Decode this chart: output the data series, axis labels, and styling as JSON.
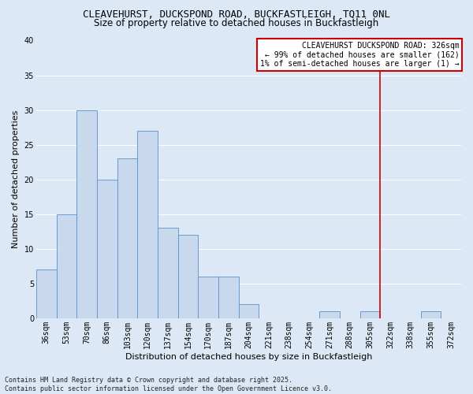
{
  "title": "CLEAVEHURST, DUCKSPOND ROAD, BUCKFASTLEIGH, TQ11 0NL",
  "subtitle": "Size of property relative to detached houses in Buckfastleigh",
  "xlabel": "Distribution of detached houses by size in Buckfastleigh",
  "ylabel": "Number of detached properties",
  "categories": [
    "36sqm",
    "53sqm",
    "70sqm",
    "86sqm",
    "103sqm",
    "120sqm",
    "137sqm",
    "154sqm",
    "170sqm",
    "187sqm",
    "204sqm",
    "221sqm",
    "238sqm",
    "254sqm",
    "271sqm",
    "288sqm",
    "305sqm",
    "322sqm",
    "338sqm",
    "355sqm",
    "372sqm"
  ],
  "values": [
    7,
    15,
    30,
    20,
    23,
    27,
    13,
    12,
    6,
    6,
    2,
    0,
    0,
    0,
    1,
    0,
    1,
    0,
    0,
    1,
    0
  ],
  "bar_color": "#c8d9ee",
  "bar_edge_color": "#5b8fc9",
  "bg_color": "#dce8f5",
  "grid_color": "#ffffff",
  "vline_color": "#cc0000",
  "vline_index": 16.5,
  "annotation_text": "CLEAVEHURST DUCKSPOND ROAD: 326sqm\n← 99% of detached houses are smaller (162)\n1% of semi-detached houses are larger (1) →",
  "annotation_box_edgecolor": "#cc0000",
  "ylim": [
    0,
    40
  ],
  "yticks": [
    0,
    5,
    10,
    15,
    20,
    25,
    30,
    35,
    40
  ],
  "footnote": "Contains HM Land Registry data © Crown copyright and database right 2025.\nContains public sector information licensed under the Open Government Licence v3.0.",
  "title_fontsize": 9,
  "subtitle_fontsize": 8.5,
  "axis_label_fontsize": 8,
  "tick_fontsize": 7,
  "annotation_fontsize": 7,
  "footnote_fontsize": 6
}
